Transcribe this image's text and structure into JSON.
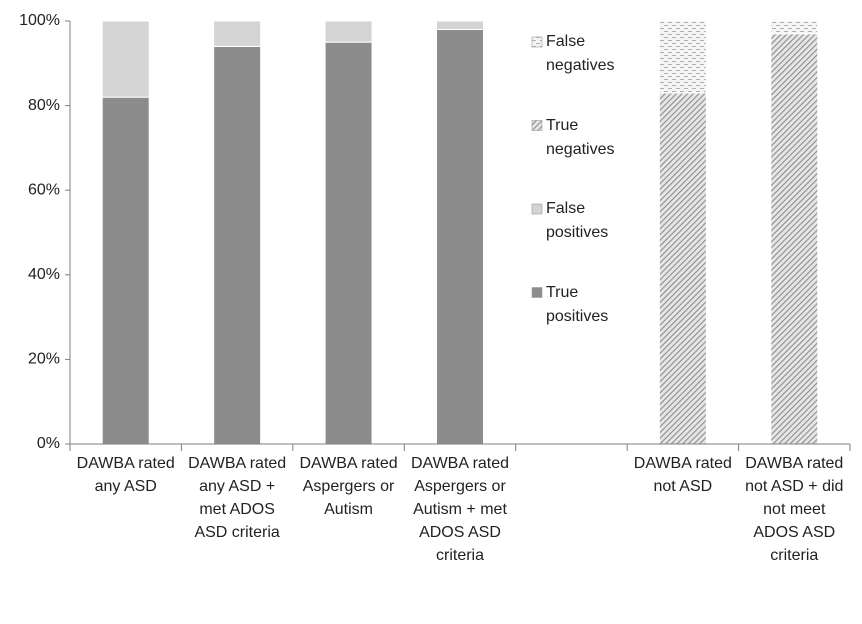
{
  "chart_data": {
    "type": "stacked_bar",
    "categories": [
      "DAWBA rated any ASD",
      "DAWBA rated any ASD + met ADOS ASD criteria",
      "DAWBA rated Aspergers or Autism",
      "DAWBA rated Aspergers or Autism + met ADOS ASD criteria",
      null,
      "DAWBA rated not ASD",
      "DAWBA rated not ASD + did not meet ADOS ASD criteria"
    ],
    "series": [
      {
        "name": "True positives",
        "color": "#8c8c8c",
        "pattern": "solid",
        "values": [
          82,
          94,
          95,
          98,
          null,
          null,
          null
        ]
      },
      {
        "name": "False positives",
        "color": "#d4d4d4",
        "pattern": "solid",
        "values": [
          18,
          6,
          5,
          2,
          null,
          null,
          null
        ]
      },
      {
        "name": "True negatives",
        "color": "#8c8c8c",
        "pattern": "hatch",
        "values": [
          null,
          null,
          null,
          null,
          null,
          83,
          97
        ]
      },
      {
        "name": "False negatives",
        "color": "#b0b0b0",
        "pattern": "dots",
        "values": [
          null,
          null,
          null,
          null,
          null,
          17,
          3
        ]
      }
    ],
    "ylim": [
      0,
      100
    ],
    "yticks": [
      {
        "value": 0,
        "label": "0%"
      },
      {
        "value": 20,
        "label": "20%"
      },
      {
        "value": 40,
        "label": "40%"
      },
      {
        "value": 60,
        "label": "60%"
      },
      {
        "value": 80,
        "label": "80%"
      },
      {
        "value": 100,
        "label": "100%"
      }
    ],
    "grid": false,
    "legend": "right"
  }
}
